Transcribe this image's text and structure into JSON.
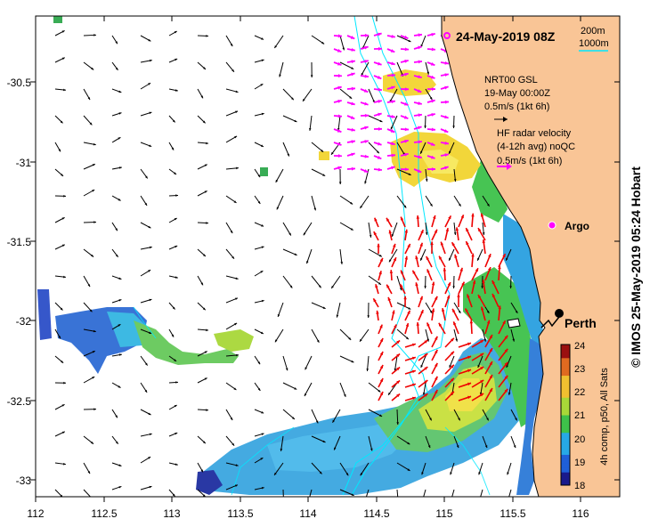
{
  "map": {
    "title": "24-May-2019 08Z",
    "lon_ticks": [
      "112",
      "112.5",
      "113",
      "113.5",
      "114",
      "114.5",
      "115",
      "115.5",
      "116"
    ],
    "lat_ticks": [
      "-30.5",
      "-31",
      "-31.5",
      "-32",
      "-32.5",
      "-33"
    ],
    "isobath_legend": {
      "label_200": "200m",
      "label_1000": "1000m"
    },
    "gsl_legend": {
      "line1": "NRT00 GSL",
      "line2": "19-May 00:00Z",
      "scale": "0.5m/s (1kt 6h)"
    },
    "radar_legend": {
      "line1": "HF radar velocity",
      "line2": "(4-12h avg) noQC",
      "scale": "0.5m/s (1kt 6h)"
    },
    "places": {
      "argo": "Argo",
      "perth": "Perth"
    },
    "colorbar": {
      "ticks": [
        "18",
        "19",
        "20",
        "21",
        "22",
        "23",
        "24"
      ],
      "label": "4h comp, p50, All Sats"
    },
    "credit": "© IMOS 25-May-2019 05:24 Hobart",
    "colors": {
      "land": "#f9c596",
      "isobath": "#00e8ff",
      "radar_arrow": "#ff00ff",
      "argo": "#ff00ff",
      "sst_arrow": "#ee0000"
    }
  }
}
